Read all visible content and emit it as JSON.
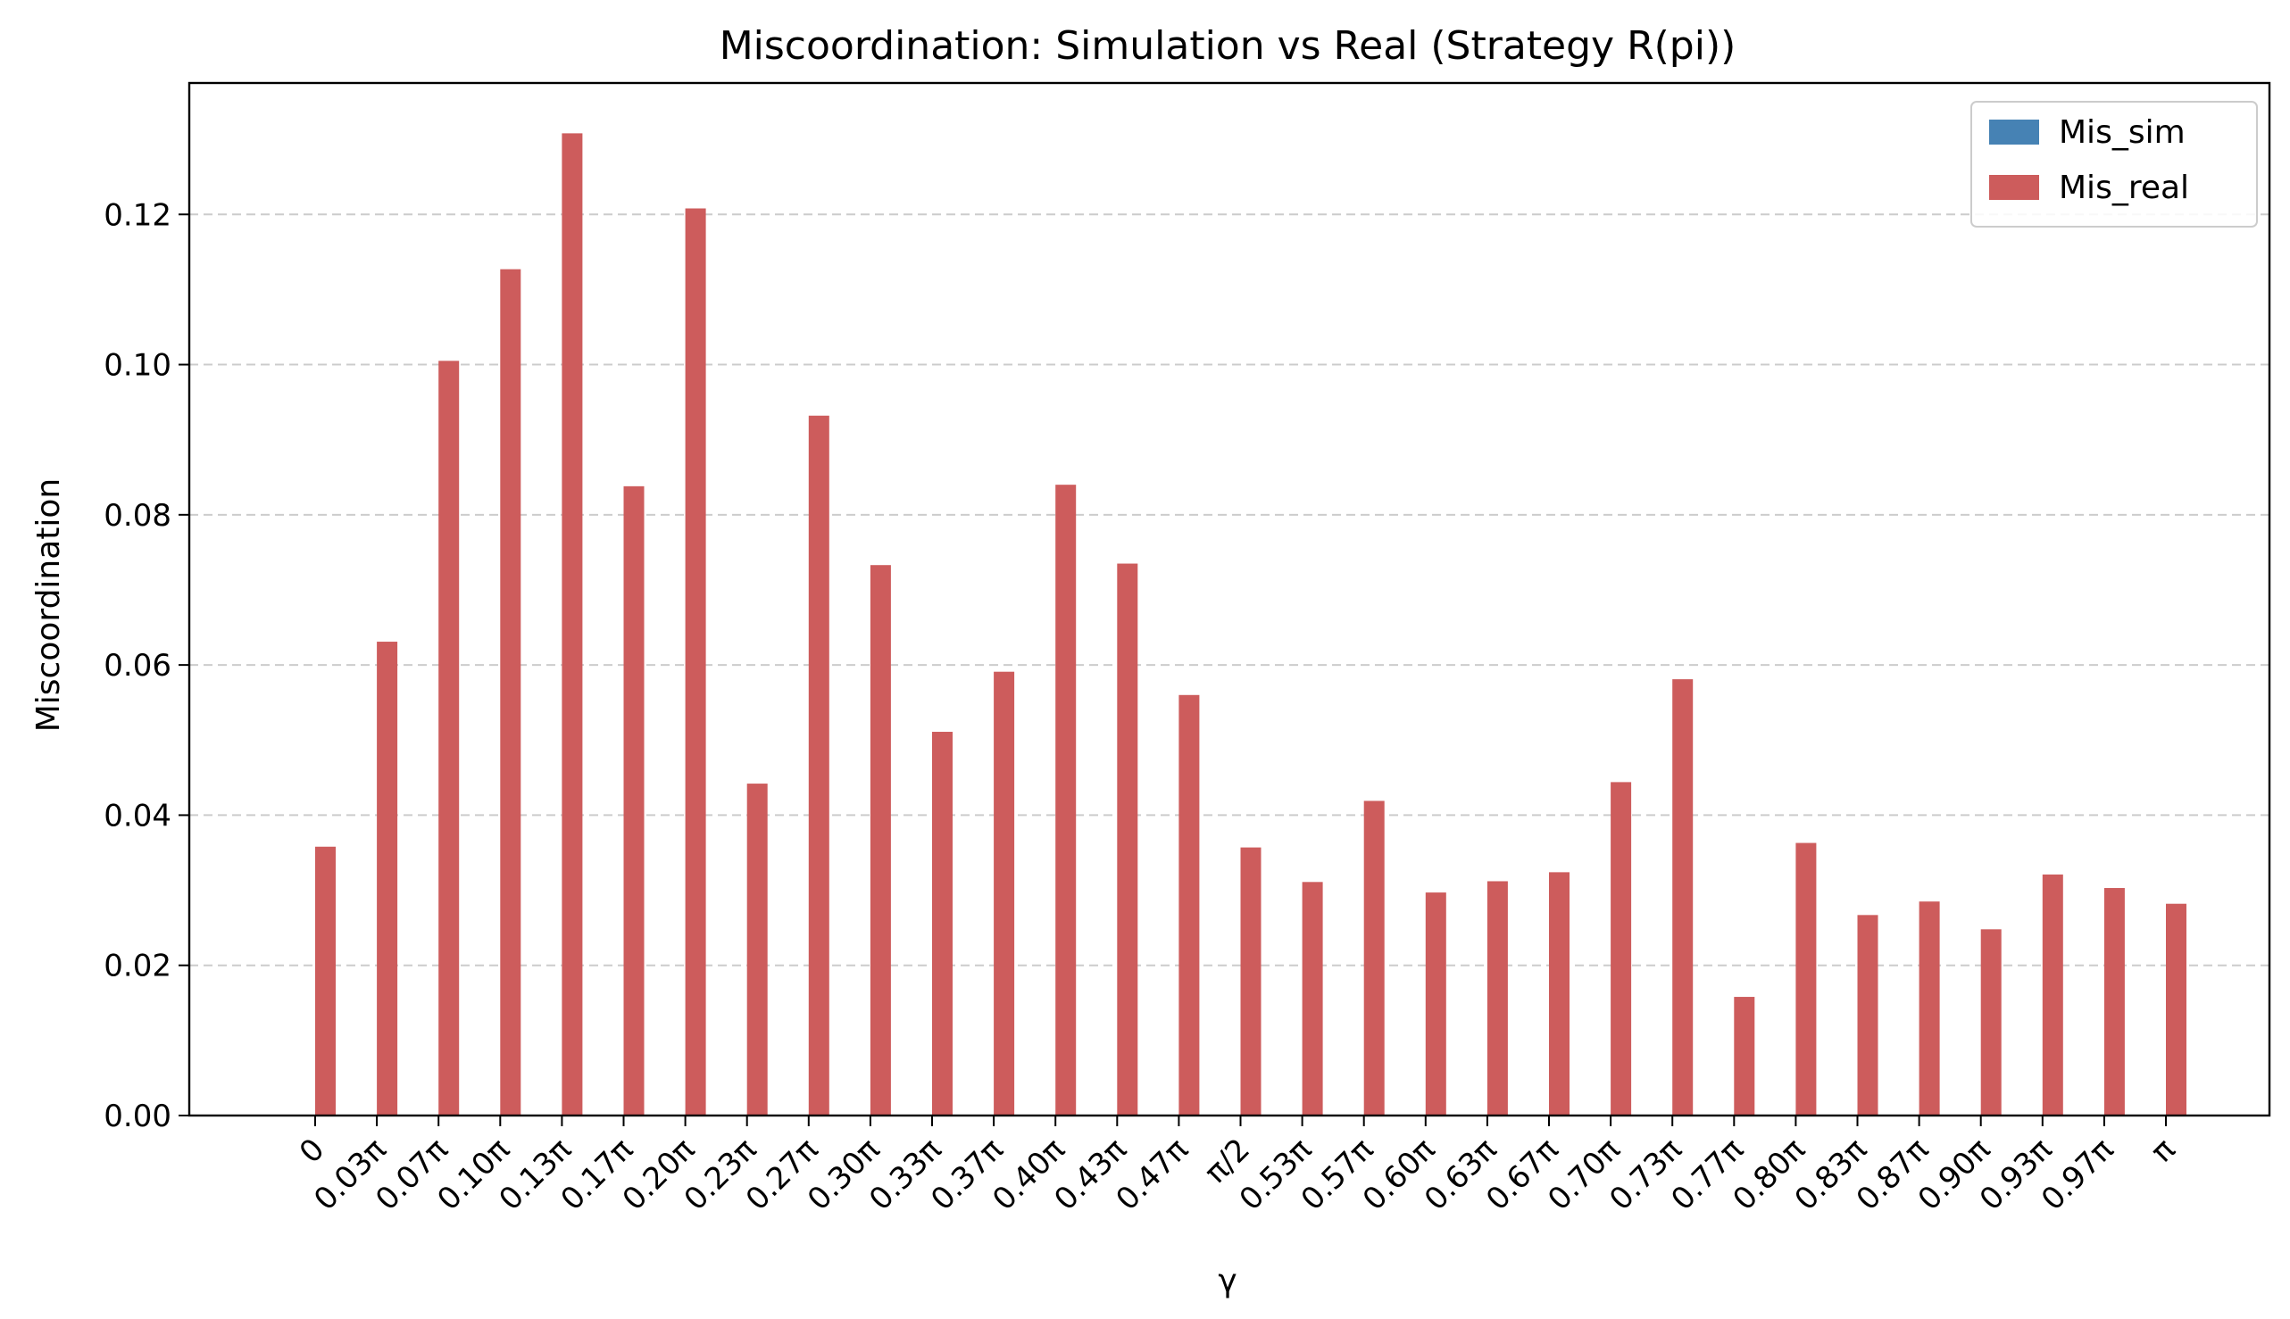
{
  "chart_data": {
    "type": "bar",
    "title": "Miscoordination: Simulation vs Real (Strategy R(pi))",
    "xlabel": "γ",
    "ylabel": "Miscoordination",
    "ylim": [
      0,
      0.1375
    ],
    "yticks": [
      "0.00",
      "0.02",
      "0.04",
      "0.06",
      "0.08",
      "0.10",
      "0.12"
    ],
    "grid": "y-dashed",
    "legend_position": "top-right",
    "categories": [
      "0",
      "0.03π",
      "0.07π",
      "0.10π",
      "0.13π",
      "0.17π",
      "0.20π",
      "0.23π",
      "0.27π",
      "0.30π",
      "0.33π",
      "0.37π",
      "0.40π",
      "0.43π",
      "0.47π",
      "π/2",
      "0.53π",
      "0.57π",
      "0.60π",
      "0.63π",
      "0.67π",
      "0.70π",
      "0.73π",
      "0.77π",
      "0.80π",
      "0.83π",
      "0.87π",
      "0.90π",
      "0.93π",
      "0.97π",
      "π"
    ],
    "series": [
      {
        "name": "Mis_sim",
        "color": "#4682b4",
        "values": [
          0,
          0,
          0,
          0,
          0,
          0,
          0,
          0,
          0,
          0,
          0,
          0,
          0,
          0,
          0,
          0,
          0,
          0,
          0,
          0,
          0,
          0,
          0,
          0,
          0,
          0,
          0,
          0,
          0,
          0,
          0
        ]
      },
      {
        "name": "Mis_real",
        "color": "#cd5c5c",
        "values": [
          0.0358,
          0.0631,
          0.1005,
          0.1127,
          0.1308,
          0.0838,
          0.1208,
          0.0442,
          0.0932,
          0.0733,
          0.0511,
          0.0591,
          0.084,
          0.0735,
          0.056,
          0.0357,
          0.0311,
          0.0419,
          0.0297,
          0.0312,
          0.0324,
          0.0444,
          0.0581,
          0.0158,
          0.0363,
          0.0267,
          0.0285,
          0.0248,
          0.0321,
          0.0303,
          0.0282
        ]
      }
    ]
  }
}
